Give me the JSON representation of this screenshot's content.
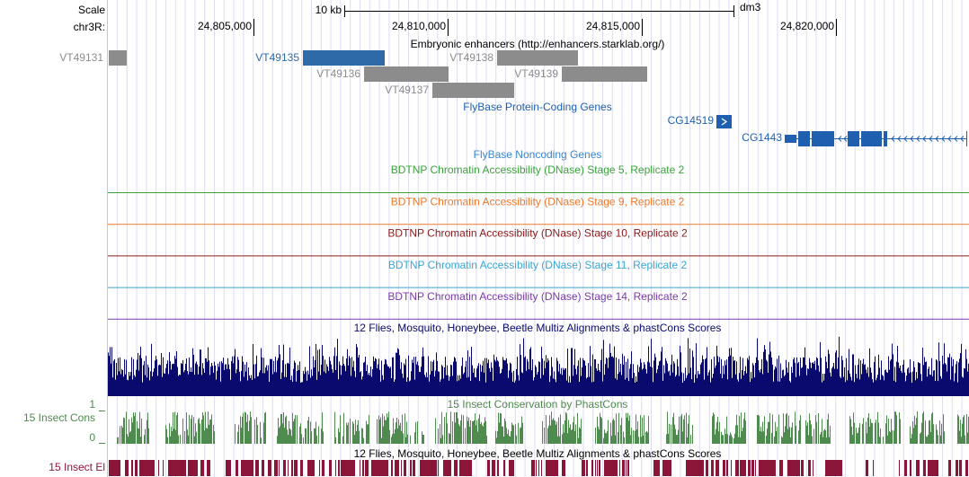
{
  "header": {
    "scale_label": "Scale",
    "chrom_label": "chr3R:",
    "scale_bar": "10 kb",
    "assembly": "dm3",
    "ruler_ticks": [
      "24,805,000",
      "24,810,000",
      "24,815,000",
      "24,820,000"
    ]
  },
  "tracks": {
    "enhancers": {
      "title": "Embryonic enhancers (http://enhancers.starklab.org/)",
      "items": [
        {
          "name": "VT49131",
          "color": "#8c8c8c"
        },
        {
          "name": "VT49135",
          "color": "#2f6aa8"
        },
        {
          "name": "VT49138",
          "color": "#8c8c8c"
        },
        {
          "name": "VT49136",
          "color": "#8c8c8c"
        },
        {
          "name": "VT49139",
          "color": "#8c8c8c"
        },
        {
          "name": "VT49137",
          "color": "#8c8c8c"
        }
      ]
    },
    "protein_genes": {
      "title": "FlyBase Protein-Coding Genes",
      "color": "#1f5fb0",
      "items": [
        {
          "name": "CG14519"
        },
        {
          "name": "CG1443"
        }
      ]
    },
    "noncoding_genes": {
      "title": "FlyBase Noncoding Genes",
      "color": "#3a86cf"
    },
    "dnase": [
      {
        "title": "BDTNP Chromatin Accessibility (DNase) Stage 5, Replicate 2",
        "color": "#3aa33a"
      },
      {
        "title": "BDTNP Chromatin Accessibility (DNase) Stage 9, Replicate 2",
        "color": "#f0782a"
      },
      {
        "title": "BDTNP Chromatin Accessibility (DNase) Stage 10, Replicate 2",
        "color": "#8b1a1a"
      },
      {
        "title": "BDTNP Chromatin Accessibility (DNase) Stage 11, Replicate 2",
        "color": "#3aa5d2"
      },
      {
        "title": "BDTNP Chromatin Accessibility (DNase) Stage 14, Replicate 2",
        "color": "#7a3aa6"
      }
    ],
    "multiz": {
      "title": "12 Flies, Mosquito, Honeybee, Beetle Multiz Alignments & phastCons Scores",
      "color": "#0a0a6e"
    },
    "phastcons": {
      "title": "15 Insect Conservation by PhastCons",
      "label": "15 Insect Cons",
      "max_label": "1",
      "min_label": "0",
      "color": "#4f8a4f"
    },
    "elements": {
      "title": "12 Flies, Mosquito, Honeybee, Beetle Multiz Alignments & phastCons Scores",
      "label": "15 Insect El",
      "color": "#8b1538"
    }
  }
}
